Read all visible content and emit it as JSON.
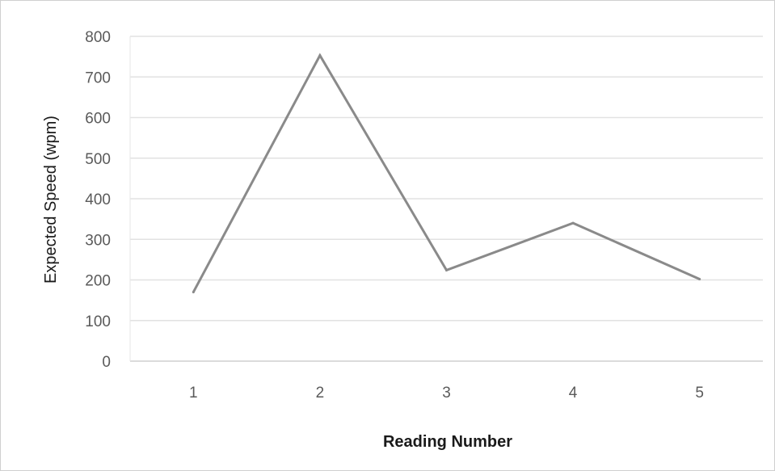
{
  "chart_data": {
    "type": "line",
    "categories": [
      "1",
      "2",
      "3",
      "4",
      "5"
    ],
    "series": [
      {
        "values": [
          170,
          753,
          224,
          340,
          202
        ],
        "color": "#8a8a8a"
      }
    ],
    "title": "",
    "xlabel": "Reading Number",
    "ylabel": "Expected Speed (wpm)",
    "ylim": [
      0,
      800
    ],
    "yticks": [
      "0",
      "100",
      "200",
      "300",
      "400",
      "500",
      "600",
      "700",
      "800"
    ],
    "grid": true,
    "legend": "none",
    "colors": {
      "gridline": "#e2e2e2",
      "axis_text": "#5a5a5a"
    }
  }
}
